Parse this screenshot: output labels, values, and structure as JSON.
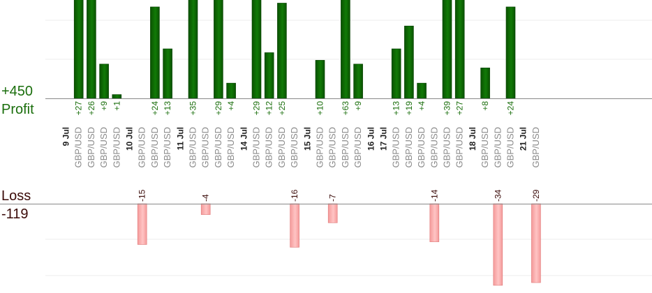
{
  "chart_data": {
    "type": "bar",
    "profit": {
      "label": "Profit",
      "total_label": "+450",
      "color": "#0b5c00",
      "ylim": [
        0,
        26
      ]
    },
    "loss": {
      "label": "Loss",
      "total_label": "-119",
      "color": "#ffb0b0",
      "ylim": [
        0,
        30
      ]
    },
    "pair": "GBP/USD",
    "days": [
      "9 Jul",
      "10 Jul",
      "11 Jul",
      "14 Jul",
      "15 Jul",
      "16 Jul",
      "17 Jul",
      "18 Jul",
      "21 Jul"
    ],
    "trades": [
      {
        "day": 0,
        "value": 27,
        "label": "+27"
      },
      {
        "day": 0,
        "value": 26,
        "label": "+26"
      },
      {
        "day": 0,
        "value": 9,
        "label": "+9"
      },
      {
        "day": 0,
        "value": 1,
        "label": "+1"
      },
      {
        "day": 1,
        "value": -15,
        "label": "-15"
      },
      {
        "day": 1,
        "value": 24,
        "label": "+24"
      },
      {
        "day": 1,
        "value": 13,
        "label": "+13"
      },
      {
        "day": 2,
        "value": 35,
        "label": "+35"
      },
      {
        "day": 2,
        "value": -4,
        "label": "-4"
      },
      {
        "day": 2,
        "value": 29,
        "label": "+29"
      },
      {
        "day": 2,
        "value": 4,
        "label": "+4"
      },
      {
        "day": 3,
        "value": 29,
        "label": "+29"
      },
      {
        "day": 3,
        "value": 12,
        "label": "+12"
      },
      {
        "day": 3,
        "value": 25,
        "label": "+25"
      },
      {
        "day": 3,
        "value": -16,
        "label": "-16"
      },
      {
        "day": 4,
        "value": 10,
        "label": "+10"
      },
      {
        "day": 4,
        "value": -7,
        "label": "-7"
      },
      {
        "day": 4,
        "value": 63,
        "label": "+63"
      },
      {
        "day": 4,
        "value": 9,
        "label": "+9"
      },
      {
        "day": 6,
        "value": 13,
        "label": "+13"
      },
      {
        "day": 6,
        "value": 19,
        "label": "+19"
      },
      {
        "day": 6,
        "value": 4,
        "label": "+4"
      },
      {
        "day": 6,
        "value": -14,
        "label": "-14"
      },
      {
        "day": 6,
        "value": 39,
        "label": "+39"
      },
      {
        "day": 6,
        "value": 27,
        "label": "+27"
      },
      {
        "day": 7,
        "value": 8,
        "label": "+8"
      },
      {
        "day": 7,
        "value": -34,
        "label": "-34"
      },
      {
        "day": 7,
        "value": 24,
        "label": "+24"
      },
      {
        "day": 8,
        "value": -29,
        "label": "-29"
      }
    ]
  }
}
